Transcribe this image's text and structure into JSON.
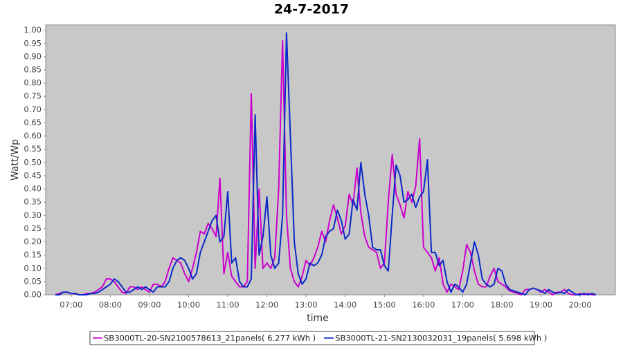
{
  "chart_data": {
    "type": "line",
    "title": "24-7-2017",
    "x_label": "time",
    "y_label": "Watt/Wp",
    "xlim": [
      6.35,
      20.9
    ],
    "ylim": [
      0,
      1.02
    ],
    "grid": false,
    "legend": "bottom",
    "xticks": [
      {
        "value": 7,
        "label": "07:00"
      },
      {
        "value": 8,
        "label": "08:00"
      },
      {
        "value": 9,
        "label": "09:00"
      },
      {
        "value": 10,
        "label": "10:00"
      },
      {
        "value": 11,
        "label": "11:00"
      },
      {
        "value": 12,
        "label": "12:00"
      },
      {
        "value": 13,
        "label": "13:00"
      },
      {
        "value": 14,
        "label": "14:00"
      },
      {
        "value": 15,
        "label": "15:00"
      },
      {
        "value": 16,
        "label": "16:00"
      },
      {
        "value": 17,
        "label": "17:00"
      },
      {
        "value": 18,
        "label": "18:00"
      },
      {
        "value": 19,
        "label": "19:00"
      },
      {
        "value": 20,
        "label": "20:00"
      }
    ],
    "yticks": [
      {
        "value": 0,
        "label": "0.00"
      },
      {
        "value": 0.05,
        "label": "0.05"
      },
      {
        "value": 0.1,
        "label": "0.10"
      },
      {
        "value": 0.15,
        "label": "0.15"
      },
      {
        "value": 0.2,
        "label": "0.20"
      },
      {
        "value": 0.25,
        "label": "0.25"
      },
      {
        "value": 0.3,
        "label": "0.30"
      },
      {
        "value": 0.35,
        "label": "0.35"
      },
      {
        "value": 0.4,
        "label": "0.40"
      },
      {
        "value": 0.45,
        "label": "0.45"
      },
      {
        "value": 0.5,
        "label": "0.50"
      },
      {
        "value": 0.55,
        "label": "0.55"
      },
      {
        "value": 0.6,
        "label": "0.60"
      },
      {
        "value": 0.65,
        "label": "0.65"
      },
      {
        "value": 0.7,
        "label": "0.70"
      },
      {
        "value": 0.75,
        "label": "0.75"
      },
      {
        "value": 0.8,
        "label": "0.80"
      },
      {
        "value": 0.85,
        "label": "0.85"
      },
      {
        "value": 0.9,
        "label": "0.90"
      },
      {
        "value": 0.95,
        "label": "0.95"
      },
      {
        "value": 1,
        "label": "1.00"
      }
    ],
    "x": [
      6.6,
      6.7,
      6.8,
      6.9,
      7.0,
      7.1,
      7.2,
      7.3,
      7.4,
      7.5,
      7.6,
      7.7,
      7.8,
      7.9,
      8.0,
      8.1,
      8.2,
      8.3,
      8.4,
      8.5,
      8.6,
      8.7,
      8.8,
      8.9,
      9.0,
      9.1,
      9.2,
      9.3,
      9.4,
      9.5,
      9.6,
      9.7,
      9.8,
      9.9,
      10.0,
      10.1,
      10.2,
      10.3,
      10.4,
      10.5,
      10.6,
      10.7,
      10.8,
      10.9,
      11.0,
      11.1,
      11.2,
      11.3,
      11.4,
      11.5,
      11.6,
      11.7,
      11.8,
      11.9,
      12.0,
      12.1,
      12.2,
      12.3,
      12.4,
      12.5,
      12.6,
      12.7,
      12.8,
      12.9,
      13.0,
      13.1,
      13.2,
      13.3,
      13.4,
      13.5,
      13.6,
      13.7,
      13.8,
      13.9,
      14.0,
      14.1,
      14.2,
      14.3,
      14.4,
      14.5,
      14.6,
      14.7,
      14.8,
      14.9,
      15.0,
      15.1,
      15.2,
      15.3,
      15.4,
      15.5,
      15.6,
      15.7,
      15.8,
      15.9,
      16.0,
      16.1,
      16.2,
      16.3,
      16.4,
      16.5,
      16.6,
      16.7,
      16.8,
      16.9,
      17.0,
      17.1,
      17.2,
      17.3,
      17.4,
      17.5,
      17.6,
      17.7,
      17.8,
      17.9,
      18.0,
      18.1,
      18.2,
      18.3,
      18.4,
      18.5,
      18.6,
      18.7,
      18.8,
      18.9,
      19.0,
      19.1,
      19.2,
      19.3,
      19.4,
      19.5,
      19.6,
      19.7,
      19.8,
      19.9,
      20.0,
      20.1,
      20.2,
      20.3,
      20.4
    ],
    "series": [
      {
        "name": "SB3000TL-20-SN2100578613_21panels( 6.277 kWh )",
        "color": "#cc00cc",
        "values": [
          0,
          0.005,
          0.01,
          0.01,
          0.005,
          0.005,
          0,
          0,
          0.005,
          0.005,
          0.01,
          0.02,
          0.03,
          0.06,
          0.06,
          0.05,
          0.03,
          0.01,
          0.005,
          0.03,
          0.03,
          0.02,
          0.03,
          0.02,
          0.01,
          0.04,
          0.04,
          0.03,
          0.05,
          0.1,
          0.14,
          0.13,
          0.12,
          0.08,
          0.05,
          0.1,
          0.16,
          0.24,
          0.23,
          0.27,
          0.25,
          0.22,
          0.44,
          0.08,
          0.16,
          0.07,
          0.05,
          0.03,
          0.03,
          0.05,
          0.76,
          0.1,
          0.4,
          0.1,
          0.12,
          0.1,
          0.14,
          0.4,
          0.96,
          0.3,
          0.1,
          0.05,
          0.03,
          0.07,
          0.13,
          0.11,
          0.14,
          0.18,
          0.24,
          0.2,
          0.28,
          0.34,
          0.29,
          0.23,
          0.26,
          0.38,
          0.34,
          0.48,
          0.31,
          0.22,
          0.18,
          0.17,
          0.16,
          0.1,
          0.12,
          0.35,
          0.53,
          0.38,
          0.34,
          0.29,
          0.39,
          0.35,
          0.41,
          0.59,
          0.18,
          0.16,
          0.14,
          0.09,
          0.14,
          0.04,
          0.01,
          0.04,
          0.03,
          0.02,
          0.09,
          0.19,
          0.16,
          0.09,
          0.04,
          0.03,
          0.03,
          0.07,
          0.1,
          0.05,
          0.04,
          0.03,
          0.015,
          0.01,
          0.005,
          0,
          0.02,
          0.02,
          0.025,
          0.02,
          0.01,
          0.02,
          0.01,
          0,
          0.01,
          0.01,
          0.02,
          0.005,
          0,
          0,
          0.005,
          0,
          0.005,
          0,
          0
        ]
      },
      {
        "name": "SB3000TL-21-SN2130032031_19panels( 5.698 kWh )",
        "color": "#0a28c8",
        "values": [
          0,
          0,
          0.01,
          0.01,
          0.005,
          0.005,
          0,
          0,
          0,
          0.005,
          0.005,
          0.01,
          0.02,
          0.03,
          0.04,
          0.06,
          0.05,
          0.03,
          0.01,
          0.01,
          0.02,
          0.03,
          0.02,
          0.03,
          0.02,
          0.01,
          0.03,
          0.03,
          0.03,
          0.05,
          0.1,
          0.13,
          0.14,
          0.13,
          0.1,
          0.06,
          0.08,
          0.16,
          0.2,
          0.24,
          0.28,
          0.3,
          0.2,
          0.22,
          0.39,
          0.12,
          0.14,
          0.05,
          0.03,
          0.03,
          0.06,
          0.68,
          0.15,
          0.22,
          0.37,
          0.15,
          0.1,
          0.12,
          0.3,
          0.99,
          0.6,
          0.2,
          0.08,
          0.04,
          0.06,
          0.12,
          0.11,
          0.12,
          0.15,
          0.22,
          0.24,
          0.25,
          0.32,
          0.28,
          0.21,
          0.23,
          0.36,
          0.32,
          0.5,
          0.38,
          0.3,
          0.18,
          0.17,
          0.17,
          0.11,
          0.09,
          0.3,
          0.49,
          0.45,
          0.35,
          0.36,
          0.38,
          0.33,
          0.37,
          0.39,
          0.51,
          0.16,
          0.16,
          0.11,
          0.13,
          0.05,
          0.01,
          0.04,
          0.03,
          0.01,
          0.04,
          0.12,
          0.2,
          0.15,
          0.06,
          0.04,
          0.03,
          0.04,
          0.1,
          0.09,
          0.04,
          0.02,
          0.015,
          0.01,
          0.005,
          0,
          0.02,
          0.025,
          0.02,
          0.015,
          0.005,
          0.02,
          0.01,
          0.005,
          0.01,
          0.005,
          0.02,
          0.01,
          0,
          0,
          0.005,
          0,
          0.005,
          0
        ]
      }
    ]
  }
}
